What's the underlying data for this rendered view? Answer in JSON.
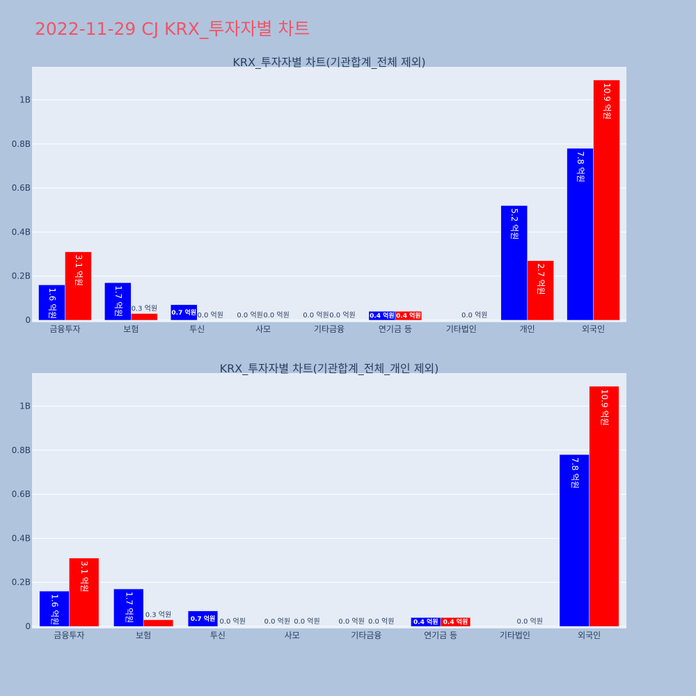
{
  "page": {
    "title": "2022-11-29 CJ KRX_투자자별 차트"
  },
  "colors": {
    "page_bg": "#b0c4de",
    "plot_bg": "#e5ecf6",
    "series_a": "#0000ff",
    "series_b": "#ff0000",
    "title": "#ef5566"
  },
  "chart_data": [
    {
      "type": "bar",
      "title": "KRX_투자자별 차트(기관합계_전체 제외)",
      "categories": [
        "금융투자",
        "보험",
        "투신",
        "사모",
        "기타금융",
        "연기금 등",
        "기타법인",
        "개인",
        "외국인"
      ],
      "series": [
        {
          "color": "#0000ff",
          "values": [
            0.16,
            0.17,
            0.07,
            0.0,
            0.0,
            0.04,
            null,
            0.52,
            0.78
          ],
          "labels": [
            "1.6 억원",
            "1.7 억원",
            "0.7 억원",
            "0.0 억원",
            "0.0 억원",
            "0.4 억원",
            "",
            "5.2 억원",
            "7.8 억원"
          ]
        },
        {
          "color": "#ff0000",
          "values": [
            0.31,
            0.03,
            0.0,
            0.0,
            0.0,
            0.04,
            0.0,
            0.27,
            1.09
          ],
          "labels": [
            "3.1 억원",
            "0.3 억원",
            "0.0 억원",
            "0.0 억원",
            "0.0 억원",
            "0.4 억원",
            "0.0 억원",
            "2.7 억원",
            "10.9 억원"
          ]
        }
      ],
      "ylim": [
        0,
        1.15
      ],
      "yticks": [
        0,
        0.2,
        0.4,
        0.6,
        0.8,
        1.0
      ],
      "ytick_labels": [
        "0",
        "0.2B",
        "0.4B",
        "0.6B",
        "0.8B",
        "1B"
      ],
      "grid": true,
      "legend": "none"
    },
    {
      "type": "bar",
      "title": "KRX_투자자별 차트(기관합계_전체_개인 제외)",
      "categories": [
        "금융투자",
        "보험",
        "투신",
        "사모",
        "기타금융",
        "연기금 등",
        "기타법인",
        "외국인"
      ],
      "series": [
        {
          "color": "#0000ff",
          "values": [
            0.16,
            0.17,
            0.07,
            0.0,
            0.0,
            0.04,
            null,
            0.78
          ],
          "labels": [
            "1.6 억원",
            "1.7 억원",
            "0.7 억원",
            "0.0 억원",
            "0.0 억원",
            "0.4 억원",
            "",
            "7.8 억원"
          ]
        },
        {
          "color": "#ff0000",
          "values": [
            0.31,
            0.03,
            0.0,
            0.0,
            0.0,
            0.04,
            0.0,
            1.09
          ],
          "labels": [
            "3.1 억원",
            "0.3 억원",
            "0.0 억원",
            "0.0 억원",
            "0.0 억원",
            "0.4 억원",
            "0.0 억원",
            "10.9 억원"
          ]
        }
      ],
      "ylim": [
        0,
        1.15
      ],
      "yticks": [
        0,
        0.2,
        0.4,
        0.6,
        0.8,
        1.0
      ],
      "ytick_labels": [
        "0",
        "0.2B",
        "0.4B",
        "0.6B",
        "0.8B",
        "1B"
      ],
      "grid": true,
      "legend": "none"
    }
  ]
}
